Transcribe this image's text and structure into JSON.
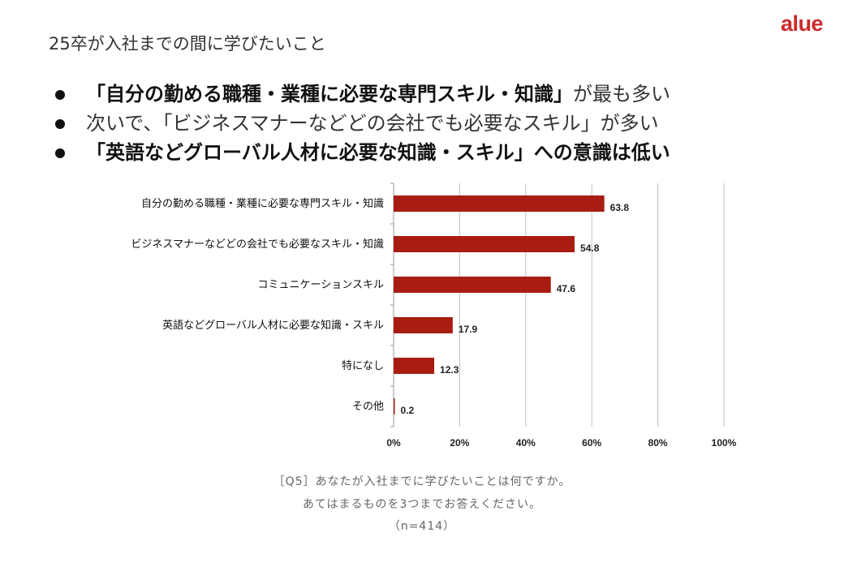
{
  "brand": {
    "logo_text": "alue"
  },
  "slide": {
    "title": "25卒が入社までの間に学びたいこと",
    "bullets": [
      {
        "strong": "「自分の勤める職種・業種に必要な専門スキル・知識」",
        "rest": "が最も多い"
      },
      {
        "text": "次いで、「ビジネスマナーなどどの会社でも必要なスキル」が多い"
      },
      {
        "text": "「英語などグローバル人材に必要な知識・スキル」への意識は低い"
      }
    ]
  },
  "chart_data": {
    "type": "bar",
    "orientation": "horizontal",
    "categories": [
      "自分の勤める職種・業種に必要な専門スキル・知識",
      "ビジネスマナーなどどの会社でも必要なスキル・知識",
      "コミュニケーションスキル",
      "英語などグローバル人材に必要な知識・スキル",
      "特になし",
      "その他"
    ],
    "values": [
      63.8,
      54.8,
      47.6,
      17.9,
      12.3,
      0.2
    ],
    "value_labels": [
      "63.8",
      "54.8",
      "47.6",
      "17.9",
      "12.3",
      "0.2"
    ],
    "xlim": [
      0,
      100
    ],
    "x_ticks": [
      0,
      20,
      40,
      60,
      80,
      100
    ],
    "x_tick_labels": [
      "0%",
      "20%",
      "40%",
      "60%",
      "80%",
      "100%"
    ],
    "grid": true,
    "bar_color": "#a81c12",
    "grid_color": "#bfbfbf"
  },
  "footnote": {
    "line1": "［Q5］あなたが入社までに学びたいことは何ですか。",
    "line2": "あてはまるものを3つまでお答えください。",
    "line3": "（n=414）"
  }
}
